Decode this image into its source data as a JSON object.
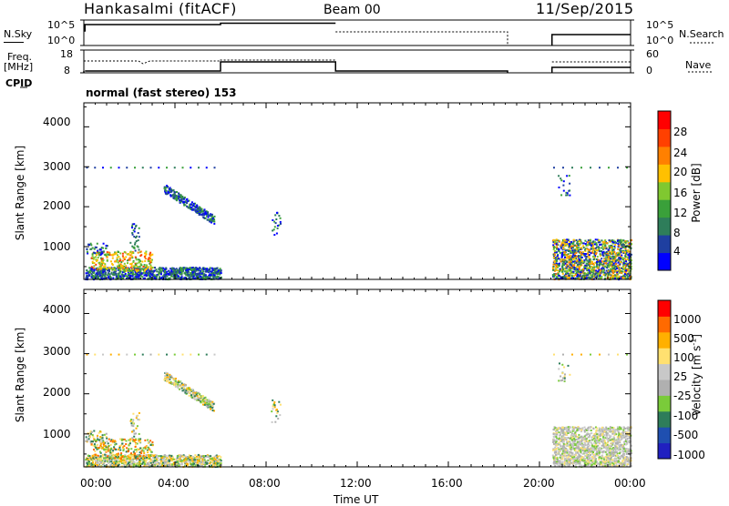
{
  "header": {
    "station": "Hankasalmi (fitACF)",
    "beam": "Beam 00",
    "date": "11/Sep/2015"
  },
  "panels": {
    "nsky": {
      "label": "N.Sky",
      "ticks": [
        "10^5",
        "10^0"
      ],
      "right_label": "N.Search",
      "right_ticks": [
        "10^5",
        "10^0"
      ]
    },
    "freq": {
      "label_line1": "Freq.",
      "label_line2": "[MHz]",
      "ticks": [
        "18",
        "8"
      ],
      "right_label": "Nave",
      "right_ticks": [
        "60",
        "0"
      ]
    },
    "cpid": {
      "label": "CPID",
      "mode_text": "normal (fast stereo) 153"
    }
  },
  "colors": {
    "power_scale": [
      "#0000ff",
      "#1f3fa0",
      "#2e7d5a",
      "#3aa03a",
      "#80c830",
      "#ffc000",
      "#ff8000",
      "#ff4000",
      "#ff0000"
    ],
    "velocity_scale": [
      "#ff0000",
      "#ff6a00",
      "#ffb000",
      "#ffe070",
      "#c8c8c8",
      "#b0b0b0",
      "#7acb3a",
      "#2e7d5a",
      "#1f4fb0",
      "#2020c0"
    ]
  },
  "chart_data": [
    {
      "type": "heatmap",
      "title": "",
      "xlabel": "",
      "ylabel": "Slant Range [km]",
      "x_ticks": [
        "00:00",
        "04:00",
        "08:00",
        "12:00",
        "16:00",
        "20:00",
        "00:00"
      ],
      "y_ticks": [
        "4000",
        "3000",
        "2000",
        "1000"
      ],
      "ylim": [
        180,
        4600
      ],
      "colorbar_label": "Power [dB]",
      "colorbar_ticks": [
        "28",
        "24",
        "20",
        "16",
        "12",
        "8",
        "4"
      ],
      "colorbar_range": [
        0,
        32
      ],
      "features": [
        {
          "start": "00:00",
          "end": "06:00",
          "range_km": [
            200,
            900
          ],
          "value_db": "4-28"
        },
        {
          "start": "03:30",
          "end": "05:40",
          "range_km": [
            1600,
            2500
          ],
          "value_db": "4-8"
        },
        {
          "start": "20:30",
          "end": "24:00",
          "range_km": [
            200,
            1200
          ],
          "value_db": "4-24"
        }
      ]
    },
    {
      "type": "heatmap",
      "title": "",
      "xlabel": "Time UT",
      "ylabel": "Slant Range [km]",
      "x_ticks": [
        "00:00",
        "04:00",
        "08:00",
        "12:00",
        "16:00",
        "20:00",
        "00:00"
      ],
      "y_ticks": [
        "4000",
        "3000",
        "2000",
        "1000"
      ],
      "ylim": [
        180,
        4600
      ],
      "colorbar_label": "Velocity [m s^-1]",
      "colorbar_ticks": [
        "1000",
        "500",
        "100",
        "25",
        "-25",
        "-100",
        "-500",
        "-1000"
      ],
      "colorbar_range": [
        -1200,
        1200
      ],
      "features": [
        {
          "start": "00:00",
          "end": "06:00",
          "range_km": [
            200,
            900
          ],
          "value": "ground scatter, -100 to 100"
        },
        {
          "start": "03:30",
          "end": "05:40",
          "range_km": [
            1600,
            2500
          ],
          "value": "-25 to 25"
        },
        {
          "start": "20:30",
          "end": "24:00",
          "range_km": [
            200,
            1200
          ],
          "value": "-25 to 100"
        }
      ]
    }
  ]
}
